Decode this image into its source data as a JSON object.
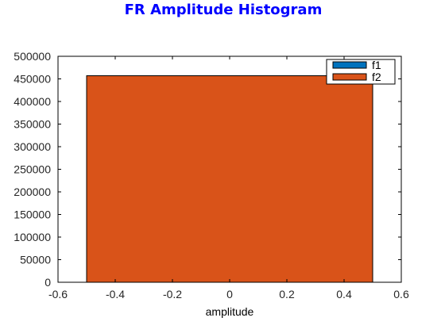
{
  "chart_data": {
    "type": "bar",
    "title": "FR Amplitude Histogram",
    "xlabel": "amplitude",
    "ylabel": "",
    "xlim": [
      -0.6,
      0.6
    ],
    "ylim": [
      0,
      500000
    ],
    "xticks": [
      "-0.6",
      "-0.4",
      "-0.2",
      "0",
      "0.2",
      "0.4",
      "0.6"
    ],
    "yticks": [
      "0",
      "50000",
      "100000",
      "150000",
      "200000",
      "250000",
      "300000",
      "350000",
      "400000",
      "450000",
      "500000"
    ],
    "grid": false,
    "legend_position": "top-right",
    "series": [
      {
        "name": "f1",
        "bins": [
          {
            "x0": -0.5,
            "x1": 0.5,
            "value": 457000
          }
        ],
        "color": "#0072BD"
      },
      {
        "name": "f2",
        "bins": [
          {
            "x0": -0.5,
            "x1": 0.5,
            "value": 457000
          }
        ],
        "color": "#D95319"
      }
    ],
    "title_color": "#0000FF"
  }
}
